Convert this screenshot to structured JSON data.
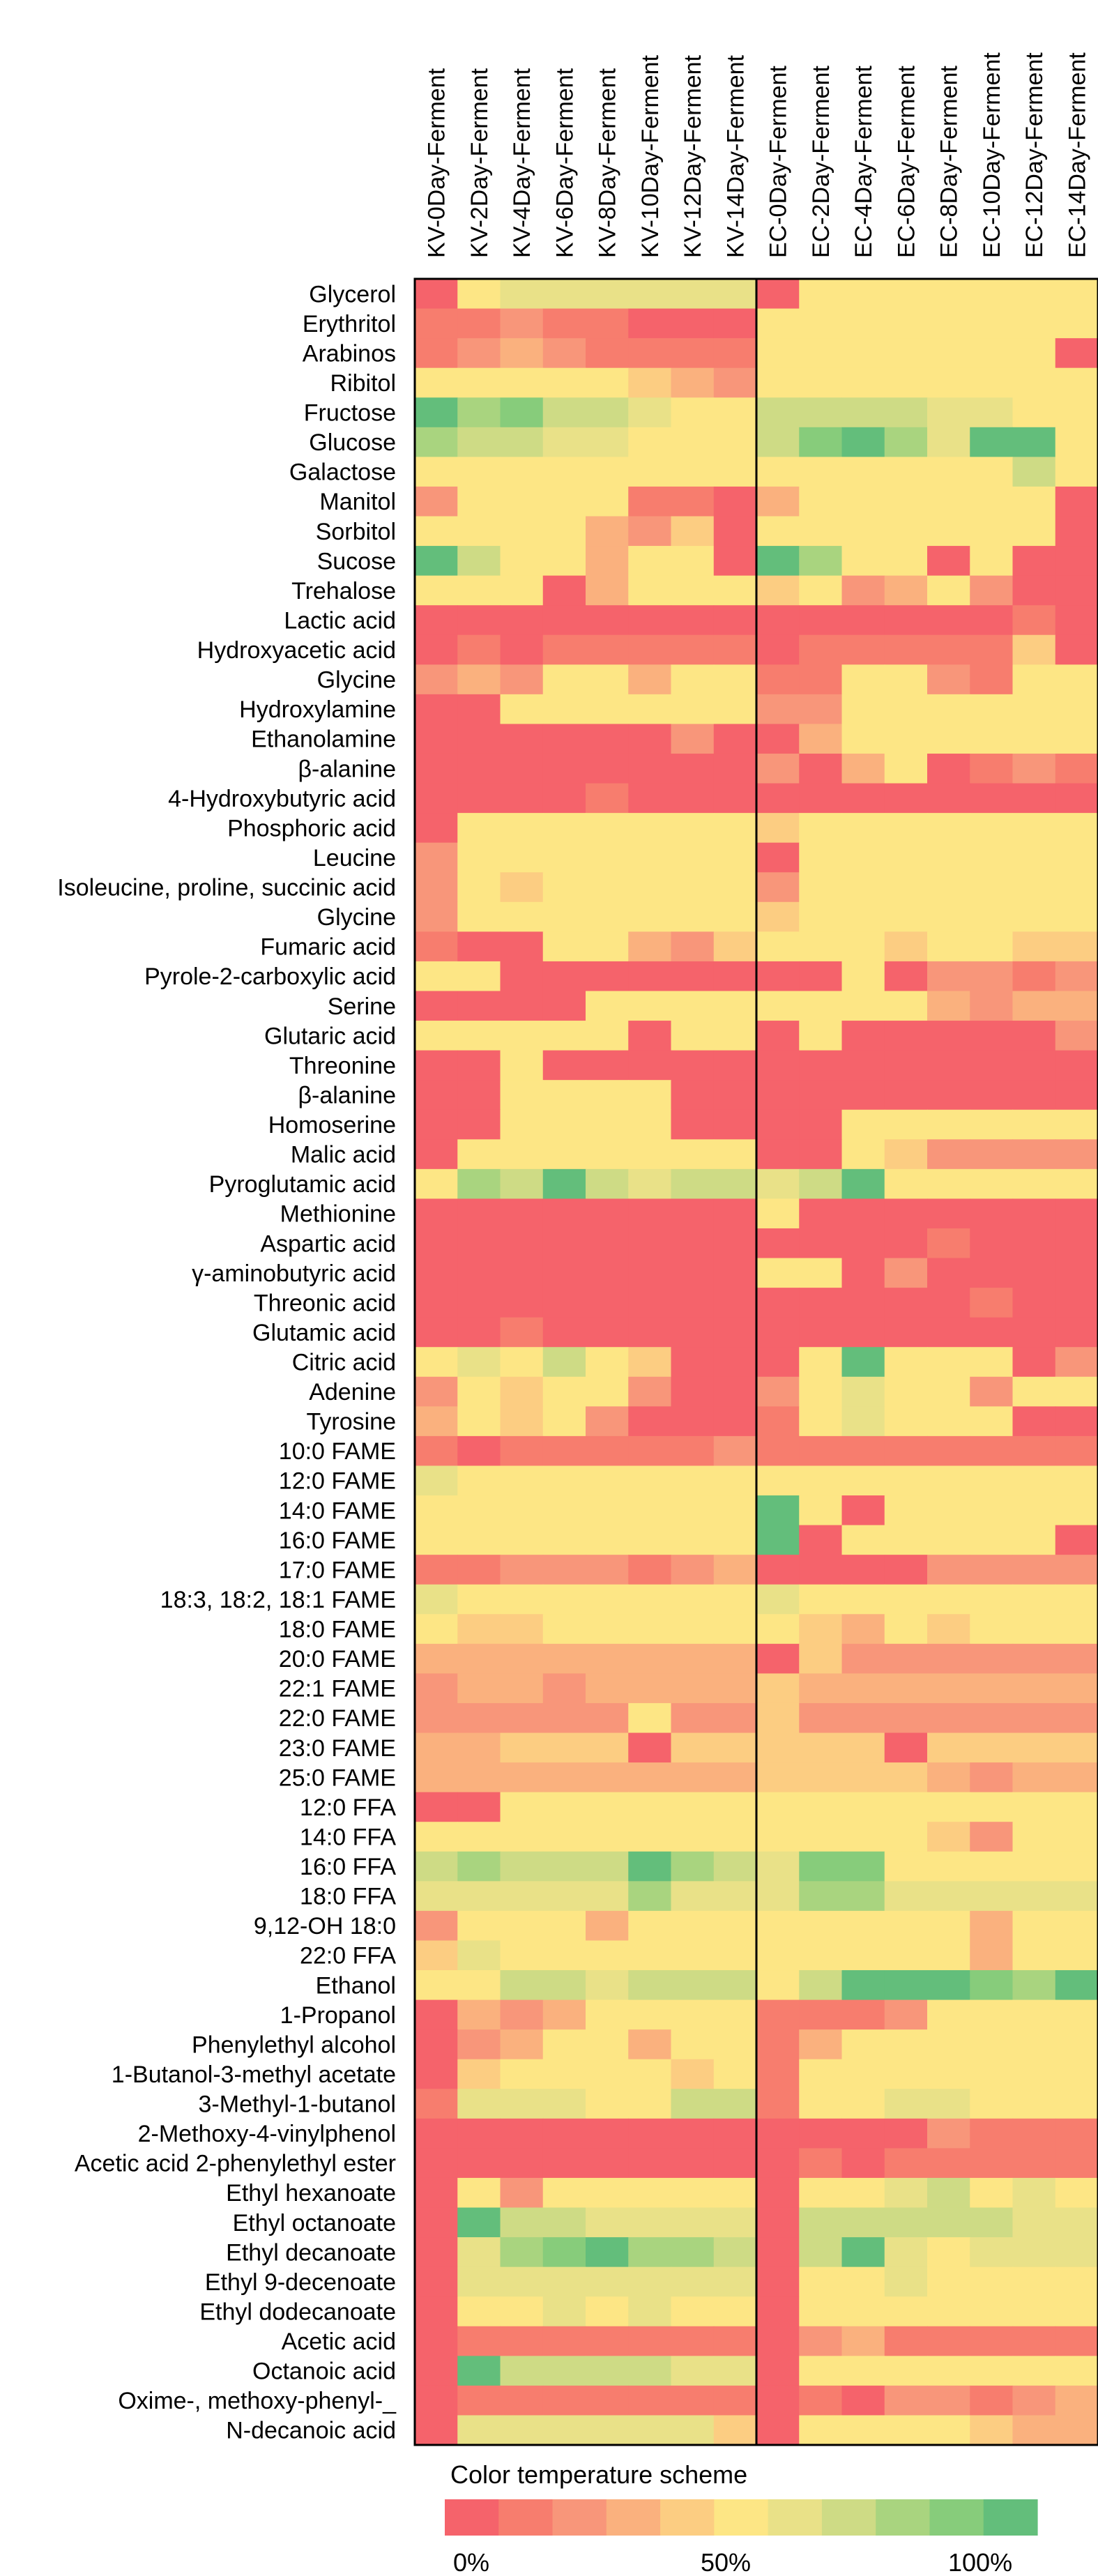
{
  "chart_data": {
    "type": "heatmap",
    "columns": [
      "KV-0Day-Ferment",
      "KV-2Day-Ferment",
      "KV-4Day-Ferment",
      "KV-6Day-Ferment",
      "KV-8Day-Ferment",
      "KV-10Day-Ferment",
      "KV-12Day-Ferment",
      "KV-14Day-Ferment",
      "EC-0Day-Ferment",
      "EC-2Day-Ferment",
      "EC-4Day-Ferment",
      "EC-6Day-Ferment",
      "EC-8Day-Ferment",
      "EC-10Day-Ferment",
      "EC-12Day-Ferment",
      "EC-14Day-Ferment"
    ],
    "rows": [
      "Glycerol",
      "Erythritol",
      "Arabinos",
      "Ribitol",
      "Fructose",
      "Glucose",
      "Galactose",
      "Manitol",
      "Sorbitol",
      "Sucose",
      "Trehalose",
      "Lactic acid",
      "Hydroxyacetic acid",
      "Glycine",
      "Hydroxylamine",
      "Ethanolamine",
      "β-alanine",
      "4-Hydroxybutyric acid",
      "Phosphoric acid",
      "Leucine",
      "Isoleucine, proline, succinic acid",
      "Glycine",
      "Fumaric acid",
      "Pyrole-2-carboxylic acid",
      "Serine",
      "Glutaric acid",
      "Threonine",
      "β-alanine",
      "Homoserine",
      "Malic acid",
      "Pyroglutamic acid",
      "Methionine",
      "Aspartic acid",
      "γ-aminobutyric acid",
      "Threonic acid",
      "Glutamic acid",
      "Citric acid",
      "Adenine",
      "Tyrosine",
      "10:0 FAME",
      "12:0 FAME",
      "14:0 FAME",
      "16:0 FAME",
      "17:0 FAME",
      "18:3, 18:2, 18:1 FAME",
      "18:0 FAME",
      "20:0 FAME",
      "22:1 FAME",
      "22:0 FAME",
      "23:0 FAME",
      "25:0 FAME",
      "12:0 FFA",
      "14:0 FFA",
      "16:0 FFA",
      "18:0 FFA",
      "9,12-OH 18:0",
      "22:0 FFA",
      "Ethanol",
      "1-Propanol",
      "Phenylethyl alcohol",
      "1-Butanol-3-methyl acetate",
      "3-Methyl-1-butanol",
      "2-Methoxy-4-vinylphenol",
      "Acetic acid 2-phenylethyl ester",
      "Ethyl hexanoate",
      "Ethyl octanoate",
      "Ethyl decanoate",
      "Ethyl 9-decenoate",
      "Ethyl dodecanoate",
      "Acetic acid",
      "Octanoic acid",
      "Oxime-, methoxy-phenyl-_",
      "N-decanoic acid"
    ],
    "values": [
      [
        0,
        5,
        6,
        6,
        6,
        6,
        6,
        6,
        0,
        5,
        5,
        5,
        5,
        5,
        5,
        5
      ],
      [
        1,
        1,
        2,
        1,
        1,
        0,
        0,
        0,
        5,
        5,
        5,
        5,
        5,
        5,
        5,
        5
      ],
      [
        1,
        2,
        3,
        2,
        1,
        1,
        1,
        1,
        5,
        5,
        5,
        5,
        5,
        5,
        5,
        0
      ],
      [
        5,
        5,
        5,
        5,
        5,
        4,
        3,
        2,
        5,
        5,
        5,
        5,
        5,
        5,
        5,
        5
      ],
      [
        10,
        8,
        9,
        7,
        7,
        6,
        5,
        5,
        7,
        7,
        7,
        7,
        6,
        6,
        5,
        5
      ],
      [
        8,
        7,
        7,
        6,
        6,
        5,
        5,
        5,
        7,
        9,
        10,
        8,
        6,
        10,
        10,
        5
      ],
      [
        5,
        5,
        5,
        5,
        5,
        5,
        5,
        5,
        5,
        5,
        5,
        5,
        5,
        5,
        7,
        5
      ],
      [
        2,
        5,
        5,
        5,
        5,
        1,
        1,
        0,
        3,
        5,
        5,
        5,
        5,
        5,
        5,
        0
      ],
      [
        5,
        5,
        5,
        5,
        3,
        2,
        4,
        0,
        5,
        5,
        5,
        5,
        5,
        5,
        5,
        0
      ],
      [
        10,
        7,
        5,
        5,
        3,
        5,
        5,
        0,
        10,
        8,
        5,
        5,
        0,
        5,
        0,
        0
      ],
      [
        5,
        5,
        5,
        0,
        3,
        5,
        5,
        5,
        4,
        5,
        2,
        3,
        5,
        2,
        0,
        0
      ],
      [
        0,
        0,
        0,
        0,
        0,
        0,
        0,
        0,
        0,
        0,
        0,
        0,
        0,
        0,
        1,
        0
      ],
      [
        0,
        1,
        0,
        1,
        1,
        1,
        1,
        1,
        0,
        1,
        1,
        1,
        1,
        1,
        4,
        0
      ],
      [
        2,
        3,
        2,
        5,
        5,
        3,
        5,
        5,
        1,
        1,
        5,
        5,
        2,
        1,
        5,
        5
      ],
      [
        0,
        0,
        5,
        5,
        5,
        5,
        5,
        5,
        2,
        2,
        5,
        5,
        5,
        5,
        5,
        5
      ],
      [
        0,
        0,
        0,
        0,
        0,
        0,
        2,
        0,
        0,
        3,
        5,
        5,
        5,
        5,
        5,
        5
      ],
      [
        0,
        0,
        0,
        0,
        0,
        0,
        0,
        0,
        2,
        0,
        3,
        5,
        0,
        1,
        2,
        1
      ],
      [
        0,
        0,
        0,
        0,
        1,
        0,
        0,
        0,
        0,
        0,
        0,
        0,
        0,
        0,
        0,
        0
      ],
      [
        0,
        5,
        5,
        5,
        5,
        5,
        5,
        5,
        4,
        5,
        5,
        5,
        5,
        5,
        5,
        5
      ],
      [
        2,
        5,
        5,
        5,
        5,
        5,
        5,
        5,
        0,
        5,
        5,
        5,
        5,
        5,
        5,
        5
      ],
      [
        2,
        5,
        4,
        5,
        5,
        5,
        5,
        5,
        2,
        5,
        5,
        5,
        5,
        5,
        5,
        5
      ],
      [
        2,
        5,
        5,
        5,
        5,
        5,
        5,
        5,
        4,
        5,
        5,
        5,
        5,
        5,
        5,
        5
      ],
      [
        1,
        0,
        0,
        5,
        5,
        3,
        2,
        4,
        5,
        5,
        5,
        4,
        5,
        5,
        4,
        4
      ],
      [
        5,
        5,
        0,
        0,
        0,
        0,
        0,
        0,
        0,
        0,
        5,
        0,
        2,
        2,
        1,
        2
      ],
      [
        0,
        0,
        0,
        0,
        5,
        5,
        5,
        5,
        5,
        5,
        5,
        5,
        3,
        2,
        3,
        3
      ],
      [
        5,
        5,
        5,
        5,
        5,
        0,
        5,
        5,
        0,
        5,
        0,
        0,
        0,
        0,
        0,
        2
      ],
      [
        0,
        0,
        5,
        0,
        0,
        0,
        0,
        0,
        0,
        0,
        0,
        0,
        0,
        0,
        0,
        0
      ],
      [
        0,
        0,
        5,
        5,
        5,
        5,
        0,
        0,
        0,
        0,
        0,
        0,
        0,
        0,
        0,
        0
      ],
      [
        0,
        0,
        5,
        5,
        5,
        5,
        0,
        0,
        0,
        0,
        5,
        5,
        5,
        5,
        5,
        5
      ],
      [
        0,
        5,
        5,
        5,
        5,
        5,
        5,
        5,
        0,
        0,
        5,
        4,
        2,
        2,
        2,
        2
      ],
      [
        5,
        8,
        7,
        10,
        7,
        6,
        7,
        7,
        6,
        7,
        10,
        5,
        5,
        5,
        5,
        5
      ],
      [
        0,
        0,
        0,
        0,
        0,
        0,
        0,
        0,
        5,
        0,
        0,
        0,
        0,
        0,
        0,
        0
      ],
      [
        0,
        0,
        0,
        0,
        0,
        0,
        0,
        0,
        0,
        0,
        0,
        0,
        1,
        0,
        0,
        0
      ],
      [
        0,
        0,
        0,
        0,
        0,
        0,
        0,
        0,
        5,
        5,
        0,
        2,
        0,
        0,
        0,
        0
      ],
      [
        0,
        0,
        0,
        0,
        0,
        0,
        0,
        0,
        0,
        0,
        0,
        0,
        0,
        1,
        0,
        0
      ],
      [
        0,
        0,
        1,
        0,
        0,
        0,
        0,
        0,
        0,
        0,
        0,
        0,
        0,
        0,
        0,
        0
      ],
      [
        5,
        6,
        5,
        7,
        5,
        4,
        0,
        0,
        0,
        5,
        10,
        5,
        5,
        5,
        0,
        2
      ],
      [
        2,
        5,
        4,
        5,
        5,
        2,
        0,
        0,
        2,
        5,
        6,
        5,
        5,
        2,
        5,
        5
      ],
      [
        3,
        5,
        4,
        5,
        2,
        0,
        0,
        0,
        1,
        5,
        6,
        5,
        5,
        5,
        0,
        0
      ],
      [
        1,
        0,
        1,
        1,
        1,
        1,
        1,
        2,
        1,
        1,
        1,
        1,
        1,
        1,
        1,
        1
      ],
      [
        6,
        5,
        5,
        5,
        5,
        5,
        5,
        5,
        5,
        5,
        5,
        5,
        5,
        5,
        5,
        5
      ],
      [
        5,
        5,
        5,
        5,
        5,
        5,
        5,
        5,
        10,
        5,
        0,
        5,
        5,
        5,
        5,
        5
      ],
      [
        5,
        5,
        5,
        5,
        5,
        5,
        5,
        5,
        10,
        0,
        5,
        5,
        5,
        5,
        5,
        0
      ],
      [
        1,
        1,
        2,
        2,
        2,
        1,
        2,
        3,
        0,
        0,
        0,
        0,
        2,
        2,
        2,
        2
      ],
      [
        6,
        5,
        5,
        5,
        5,
        5,
        5,
        5,
        6,
        5,
        5,
        5,
        5,
        5,
        5,
        5
      ],
      [
        5,
        4,
        4,
        5,
        5,
        5,
        5,
        5,
        5,
        4,
        3,
        5,
        4,
        5,
        5,
        5
      ],
      [
        3,
        3,
        3,
        3,
        3,
        3,
        3,
        3,
        0,
        4,
        2,
        2,
        2,
        2,
        2,
        2
      ],
      [
        2,
        3,
        3,
        2,
        3,
        3,
        3,
        3,
        4,
        3,
        3,
        3,
        3,
        3,
        3,
        3
      ],
      [
        2,
        2,
        2,
        2,
        2,
        5,
        2,
        2,
        4,
        2,
        2,
        2,
        2,
        2,
        2,
        2
      ],
      [
        3,
        3,
        4,
        4,
        4,
        0,
        4,
        4,
        4,
        4,
        4,
        0,
        4,
        4,
        4,
        4
      ],
      [
        3,
        3,
        3,
        3,
        3,
        3,
        3,
        3,
        4,
        4,
        4,
        4,
        3,
        2,
        3,
        3
      ],
      [
        0,
        0,
        5,
        5,
        5,
        5,
        5,
        5,
        5,
        5,
        5,
        5,
        5,
        5,
        5,
        5
      ],
      [
        5,
        5,
        5,
        5,
        5,
        5,
        5,
        5,
        5,
        5,
        5,
        5,
        4,
        2,
        5,
        5
      ],
      [
        7,
        8,
        7,
        7,
        7,
        10,
        8,
        7,
        6,
        9,
        9,
        5,
        5,
        5,
        5,
        5
      ],
      [
        6,
        6,
        6,
        6,
        6,
        8,
        6,
        6,
        6,
        8,
        8,
        6,
        6,
        6,
        6,
        6
      ],
      [
        2,
        5,
        5,
        5,
        3,
        5,
        5,
        5,
        5,
        5,
        5,
        5,
        5,
        3,
        5,
        5
      ],
      [
        4,
        6,
        5,
        5,
        5,
        5,
        5,
        5,
        5,
        5,
        5,
        5,
        5,
        3,
        5,
        5
      ],
      [
        5,
        5,
        7,
        7,
        6,
        7,
        7,
        7,
        5,
        7,
        10,
        10,
        10,
        9,
        8,
        10
      ],
      [
        0,
        3,
        2,
        3,
        5,
        5,
        5,
        5,
        1,
        1,
        1,
        2,
        5,
        5,
        5,
        5
      ],
      [
        0,
        2,
        3,
        5,
        5,
        3,
        5,
        5,
        1,
        3,
        5,
        5,
        5,
        5,
        5,
        5
      ],
      [
        0,
        4,
        5,
        5,
        5,
        5,
        4,
        5,
        1,
        5,
        5,
        5,
        5,
        5,
        5,
        5
      ],
      [
        1,
        6,
        6,
        6,
        5,
        5,
        7,
        7,
        1,
        5,
        5,
        6,
        6,
        5,
        5,
        5
      ],
      [
        0,
        0,
        0,
        0,
        0,
        0,
        0,
        0,
        0,
        0,
        0,
        0,
        2,
        1,
        1,
        1
      ],
      [
        0,
        0,
        0,
        0,
        0,
        0,
        0,
        0,
        0,
        1,
        0,
        1,
        1,
        1,
        1,
        1
      ],
      [
        0,
        5,
        2,
        5,
        5,
        5,
        5,
        5,
        0,
        5,
        5,
        6,
        7,
        5,
        6,
        5
      ],
      [
        0,
        10,
        7,
        7,
        6,
        6,
        6,
        6,
        0,
        7,
        7,
        7,
        7,
        7,
        6,
        6
      ],
      [
        0,
        6,
        8,
        9,
        10,
        8,
        8,
        7,
        0,
        7,
        10,
        6,
        5,
        6,
        6,
        6
      ],
      [
        0,
        6,
        6,
        6,
        6,
        6,
        6,
        6,
        0,
        5,
        5,
        6,
        5,
        5,
        5,
        5
      ],
      [
        0,
        5,
        5,
        6,
        5,
        6,
        5,
        5,
        0,
        5,
        5,
        5,
        5,
        5,
        5,
        5
      ],
      [
        0,
        1,
        1,
        1,
        1,
        1,
        1,
        1,
        0,
        2,
        3,
        1,
        1,
        1,
        1,
        1
      ],
      [
        0,
        10,
        7,
        7,
        7,
        7,
        6,
        6,
        0,
        5,
        5,
        5,
        5,
        5,
        5,
        5
      ],
      [
        0,
        1,
        1,
        1,
        1,
        1,
        1,
        1,
        0,
        1,
        0,
        2,
        2,
        1,
        2,
        3
      ],
      [
        0,
        6,
        6,
        6,
        6,
        6,
        6,
        4,
        0,
        5,
        5,
        5,
        5,
        4,
        3,
        3
      ]
    ],
    "value_scale": "0 = 0%, 5 = 50%, 10 = 100%",
    "legend": {
      "title": "Color temperature scheme",
      "tick_labels": [
        "0%",
        "50%",
        "100%"
      ],
      "colors": [
        "#f5636b",
        "#f77d6e",
        "#f8967a",
        "#fab17e",
        "#fccd82",
        "#fde685",
        "#e9e188",
        "#cedb85",
        "#a9d47f",
        "#87cc7b",
        "#63be7b"
      ]
    }
  }
}
